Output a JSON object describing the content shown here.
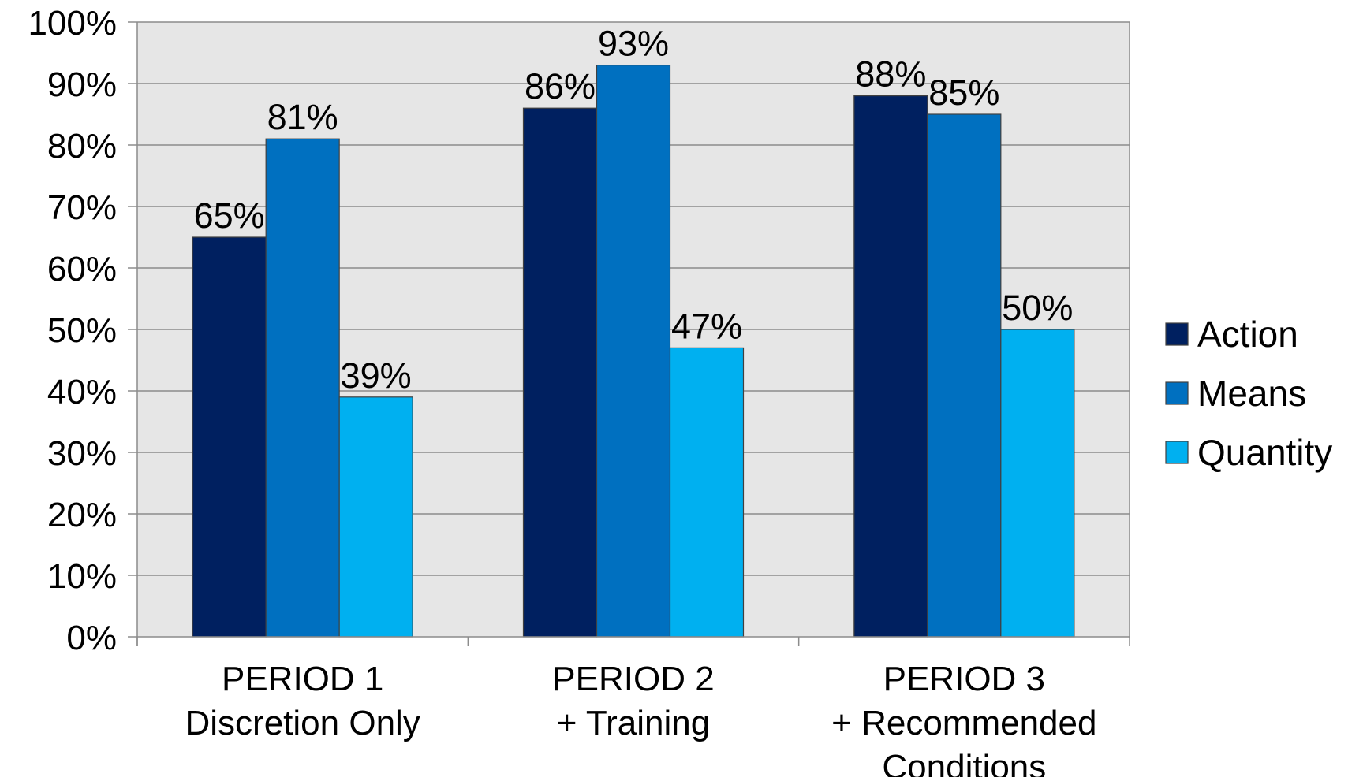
{
  "chart_data": {
    "type": "bar",
    "title": "",
    "xlabel": "",
    "ylabel": "",
    "categories": [
      [
        "PERIOD 1",
        "Discretion Only"
      ],
      [
        "PERIOD 2",
        "+ Training"
      ],
      [
        "PERIOD 3",
        "+ Recommended",
        "Conditions"
      ]
    ],
    "series": [
      {
        "name": "Action",
        "values": [
          65,
          86,
          88
        ],
        "labels": [
          "65%",
          "86%",
          "88%"
        ],
        "color": "#002060"
      },
      {
        "name": "Means",
        "values": [
          81,
          93,
          85
        ],
        "labels": [
          "81%",
          "93%",
          "85%"
        ],
        "color": "#0070C0"
      },
      {
        "name": "Quantity",
        "values": [
          39,
          47,
          50
        ],
        "labels": [
          "39%",
          "47%",
          "50%"
        ],
        "color": "#00B0F0"
      }
    ],
    "ylim": [
      0,
      100
    ],
    "yticks": [
      0,
      10,
      20,
      30,
      40,
      50,
      60,
      70,
      80,
      90,
      100
    ],
    "ytick_labels": [
      "0%",
      "10%",
      "20%",
      "30%",
      "40%",
      "50%",
      "60%",
      "70%",
      "80%",
      "90%",
      "100%"
    ],
    "grid": true,
    "legend_position": "right",
    "plot_background": "#E6E6E6",
    "gridline_color": "#8C8C8C"
  }
}
